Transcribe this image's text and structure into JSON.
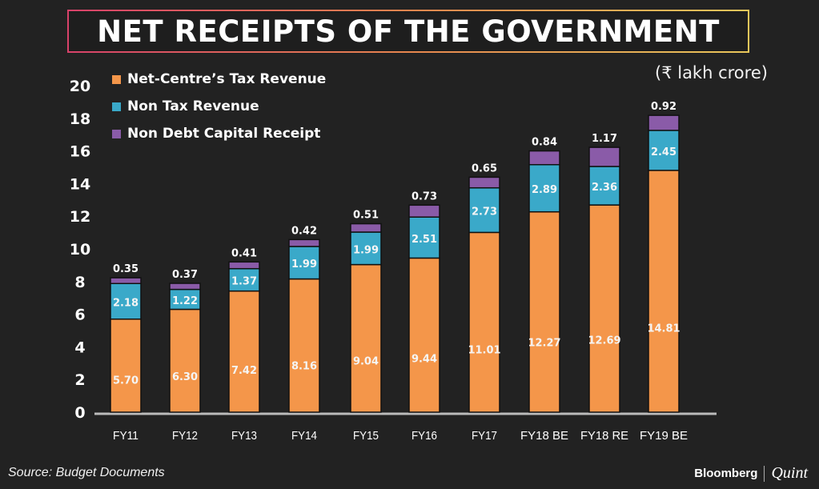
{
  "title": "NET RECEIPTS OF THE GOVERNMENT",
  "unit_label": "(₹ lakh crore)",
  "source": "Source: Budget Documents",
  "brand": {
    "name": "Bloomberg",
    "sub": "Quint"
  },
  "colors": {
    "tax": "#f4964a",
    "nontax": "#3aa9c9",
    "capital": "#8a5ba8",
    "background": "#222222"
  },
  "chart_data": {
    "type": "bar",
    "stacked": true,
    "title": "NET RECEIPTS OF THE GOVERNMENT",
    "xlabel": "",
    "ylabel": "(₹ lakh crore)",
    "ylim": [
      0,
      20
    ],
    "yticks": [
      0,
      2,
      4,
      6,
      8,
      10,
      12,
      14,
      16,
      18,
      20
    ],
    "grid": false,
    "legend_position": "top-left",
    "categories": [
      "FY11",
      "FY12",
      "FY13",
      "FY14",
      "FY15",
      "FY16",
      "FY17",
      "FY18 BE",
      "FY18 RE",
      "FY19 BE"
    ],
    "series": [
      {
        "name": "Net-Centre’s Tax Revenue",
        "color": "#f4964a",
        "values": [
          5.7,
          6.3,
          7.42,
          8.16,
          9.04,
          9.44,
          11.01,
          12.27,
          12.69,
          14.81
        ],
        "labels": [
          "5.70",
          "6.30",
          "7.42",
          "8.16",
          "9.04",
          "9.44",
          "11.01",
          "12.27",
          "12.69",
          "14.81"
        ]
      },
      {
        "name": "Non Tax Revenue",
        "color": "#3aa9c9",
        "values": [
          2.18,
          1.22,
          1.37,
          1.99,
          1.99,
          2.51,
          2.73,
          2.89,
          2.36,
          2.45
        ],
        "labels": [
          "2.18",
          "1.22",
          "1.37",
          "1.99",
          "1.99",
          "2.51",
          "2.73",
          "2.89",
          "2.36",
          "2.45"
        ]
      },
      {
        "name": "Non Debt Capital Receipt",
        "color": "#8a5ba8",
        "values": [
          0.35,
          0.37,
          0.41,
          0.42,
          0.51,
          0.73,
          0.65,
          0.84,
          1.17,
          0.92
        ],
        "labels": [
          "0.35",
          "0.37",
          "0.41",
          "0.42",
          "0.51",
          "0.73",
          "0.65",
          "0.84",
          "1.17",
          "0.92"
        ]
      }
    ]
  }
}
